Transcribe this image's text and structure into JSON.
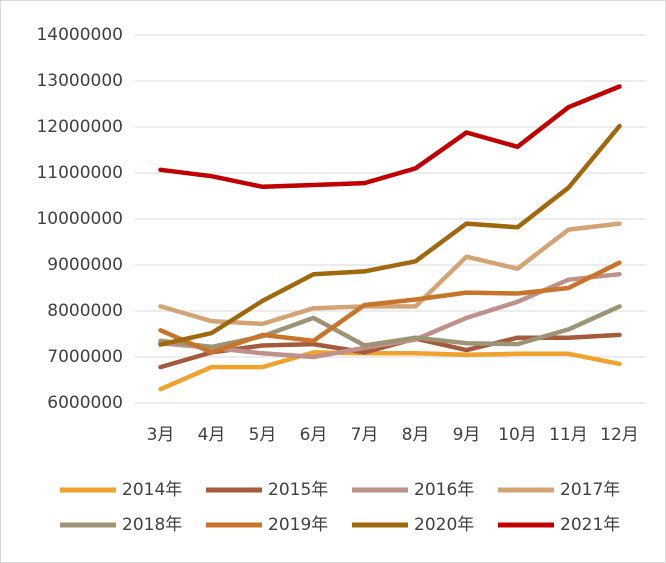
{
  "chart_data": {
    "type": "line",
    "categories": [
      "3月",
      "4月",
      "5月",
      "6月",
      "7月",
      "8月",
      "9月",
      "10月",
      "11月",
      "12月"
    ],
    "ylim": [
      6000000,
      14000000
    ],
    "yticks": [
      6000000,
      7000000,
      8000000,
      9000000,
      10000000,
      11000000,
      12000000,
      13000000,
      14000000
    ],
    "grid": true,
    "legend": "bottom",
    "series": [
      {
        "name": "2014年",
        "color": "#f0a22e",
        "values": [
          6300000,
          6780000,
          6780000,
          7100000,
          7080000,
          7080000,
          7050000,
          7070000,
          7070000,
          6850000
        ]
      },
      {
        "name": "2015年",
        "color": "#a55a3c",
        "values": [
          6780000,
          7100000,
          7250000,
          7280000,
          7100000,
          7400000,
          7150000,
          7420000,
          7420000,
          7480000
        ]
      },
      {
        "name": "2016年",
        "color": "#c0908a",
        "values": [
          7300000,
          7200000,
          7080000,
          7000000,
          7200000,
          7380000,
          7850000,
          8200000,
          8680000,
          8800000
        ]
      },
      {
        "name": "2017年",
        "color": "#d4a373",
        "values": [
          8100000,
          7780000,
          7720000,
          8060000,
          8100000,
          8100000,
          9180000,
          8920000,
          9770000,
          9900000
        ]
      },
      {
        "name": "2018年",
        "color": "#9c9474",
        "values": [
          7350000,
          7220000,
          7450000,
          7850000,
          7250000,
          7420000,
          7300000,
          7280000,
          7600000,
          8100000
        ]
      },
      {
        "name": "2019年",
        "color": "#c8742a",
        "values": [
          7580000,
          7100000,
          7480000,
          7350000,
          8130000,
          8250000,
          8400000,
          8380000,
          8500000,
          9050000
        ]
      },
      {
        "name": "2020年",
        "color": "#a0680c",
        "values": [
          7270000,
          7520000,
          8220000,
          8800000,
          8860000,
          9080000,
          9900000,
          9820000,
          10680000,
          12020000
        ]
      },
      {
        "name": "2021年",
        "color": "#c00000",
        "values": [
          11070000,
          10930000,
          10700000,
          10740000,
          10780000,
          11100000,
          11880000,
          11570000,
          12430000,
          12880000
        ]
      }
    ]
  }
}
